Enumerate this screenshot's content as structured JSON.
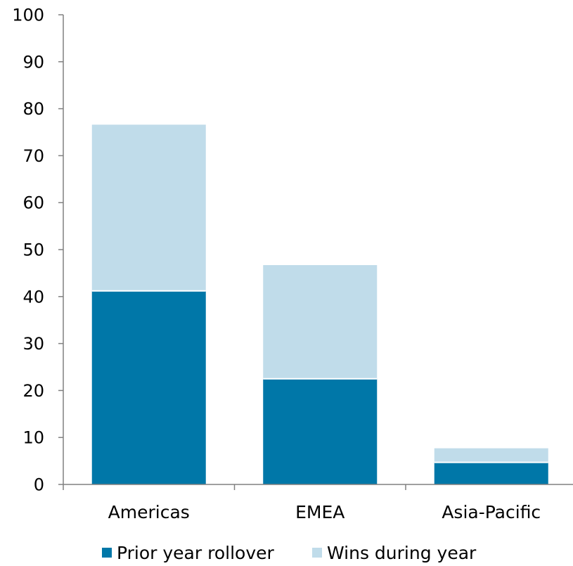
{
  "chart_data": {
    "type": "bar",
    "stacked": true,
    "title": "",
    "xlabel": "",
    "ylabel": "",
    "categories": [
      "Americas",
      "EMEA",
      "Asia-Pacific"
    ],
    "series": [
      {
        "name": "Prior year rollover",
        "values": [
          41.2,
          22.5,
          4.7
        ],
        "color": "#0077a8"
      },
      {
        "name": "Wins during year",
        "values": [
          35.4,
          24.2,
          3.0
        ],
        "color": "#c0dcea"
      }
    ],
    "ylim": [
      0,
      100
    ],
    "yticks": [
      0,
      10,
      20,
      30,
      40,
      50,
      60,
      70,
      80,
      90,
      100
    ],
    "grid": false,
    "legend_position": "bottom"
  }
}
